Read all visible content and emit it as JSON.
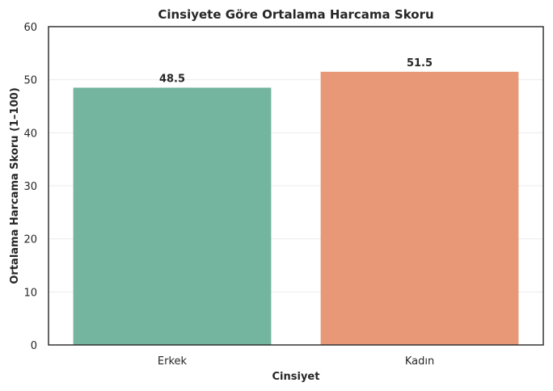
{
  "chart_data": {
    "type": "bar",
    "title": "Cinsiyete Göre Ortalama Harcama Skoru",
    "xlabel": "Cinsiyet",
    "ylabel": "Ortalama Harcama Skoru (1–100)",
    "categories": [
      "Erkek",
      "Kadın"
    ],
    "values": [
      48.5,
      51.5
    ],
    "value_labels": [
      "48.5",
      "51.5"
    ],
    "colors": [
      "#74b5a0",
      "#e99877"
    ],
    "ylim": [
      0,
      60
    ],
    "yticks": [
      0,
      10,
      20,
      30,
      40,
      50,
      60
    ],
    "grid": true,
    "legend": "none"
  }
}
